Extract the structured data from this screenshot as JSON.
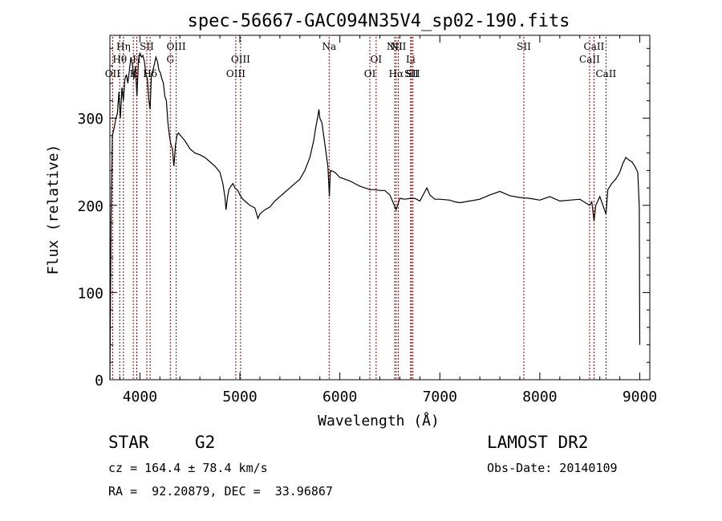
{
  "chart_data": {
    "type": "line",
    "title": "spec-56667-GAC094N35V4_sp02-190.fits",
    "xlabel": "Wavelength (Å)",
    "ylabel": "Flux (relative)",
    "xlim": [
      3700,
      9100
    ],
    "ylim": [
      0,
      395
    ],
    "xticks": [
      4000,
      5000,
      6000,
      7000,
      8000,
      9000
    ],
    "yticks": [
      0,
      100,
      200,
      300
    ],
    "grid": false,
    "line_color": "#000000",
    "marker_color": "#8b0000",
    "series": [
      {
        "points": [
          [
            3700,
            0
          ],
          [
            3712,
            190
          ],
          [
            3725,
            280
          ],
          [
            3745,
            290
          ],
          [
            3760,
            300
          ],
          [
            3775,
            305
          ],
          [
            3790,
            330
          ],
          [
            3805,
            300
          ],
          [
            3820,
            335
          ],
          [
            3835,
            320
          ],
          [
            3850,
            345
          ],
          [
            3865,
            350
          ],
          [
            3880,
            340
          ],
          [
            3895,
            355
          ],
          [
            3910,
            370
          ],
          [
            3925,
            362
          ],
          [
            3940,
            345
          ],
          [
            3955,
            360
          ],
          [
            3970,
            325
          ],
          [
            3985,
            365
          ],
          [
            4000,
            375
          ],
          [
            4015,
            370
          ],
          [
            4030,
            372
          ],
          [
            4045,
            365
          ],
          [
            4060,
            350
          ],
          [
            4075,
            345
          ],
          [
            4090,
            320
          ],
          [
            4102,
            310
          ],
          [
            4115,
            350
          ],
          [
            4130,
            355
          ],
          [
            4145,
            362
          ],
          [
            4160,
            370
          ],
          [
            4175,
            365
          ],
          [
            4190,
            355
          ],
          [
            4205,
            352
          ],
          [
            4220,
            345
          ],
          [
            4235,
            340
          ],
          [
            4250,
            325
          ],
          [
            4265,
            320
          ],
          [
            4280,
            295
          ],
          [
            4295,
            280
          ],
          [
            4310,
            270
          ],
          [
            4325,
            265
          ],
          [
            4340,
            245
          ],
          [
            4355,
            268
          ],
          [
            4370,
            280
          ],
          [
            4385,
            283
          ],
          [
            4400,
            281
          ],
          [
            4450,
            274
          ],
          [
            4500,
            265
          ],
          [
            4550,
            260
          ],
          [
            4600,
            258
          ],
          [
            4650,
            255
          ],
          [
            4700,
            250
          ],
          [
            4750,
            245
          ],
          [
            4800,
            238
          ],
          [
            4830,
            225
          ],
          [
            4850,
            210
          ],
          [
            4862,
            195
          ],
          [
            4875,
            208
          ],
          [
            4890,
            218
          ],
          [
            4910,
            222
          ],
          [
            4930,
            225
          ],
          [
            4950,
            220
          ],
          [
            4980,
            217
          ],
          [
            5000,
            212
          ],
          [
            5030,
            207
          ],
          [
            5070,
            203
          ],
          [
            5100,
            200
          ],
          [
            5150,
            197
          ],
          [
            5180,
            185
          ],
          [
            5200,
            190
          ],
          [
            5250,
            195
          ],
          [
            5300,
            198
          ],
          [
            5350,
            205
          ],
          [
            5400,
            210
          ],
          [
            5450,
            215
          ],
          [
            5500,
            220
          ],
          [
            5550,
            225
          ],
          [
            5600,
            230
          ],
          [
            5650,
            240
          ],
          [
            5700,
            255
          ],
          [
            5740,
            275
          ],
          [
            5760,
            290
          ],
          [
            5780,
            302
          ],
          [
            5790,
            310
          ],
          [
            5800,
            300
          ],
          [
            5820,
            295
          ],
          [
            5850,
            270
          ],
          [
            5880,
            245
          ],
          [
            5895,
            210
          ],
          [
            5905,
            240
          ],
          [
            5950,
            238
          ],
          [
            6000,
            232
          ],
          [
            6050,
            230
          ],
          [
            6100,
            228
          ],
          [
            6150,
            225
          ],
          [
            6200,
            222
          ],
          [
            6250,
            220
          ],
          [
            6300,
            218
          ],
          [
            6350,
            218
          ],
          [
            6400,
            217
          ],
          [
            6450,
            217
          ],
          [
            6500,
            212
          ],
          [
            6563,
            195
          ],
          [
            6600,
            208
          ],
          [
            6650,
            207
          ],
          [
            6700,
            208
          ],
          [
            6750,
            208
          ],
          [
            6800,
            205
          ],
          [
            6870,
            220
          ],
          [
            6900,
            212
          ],
          [
            6950,
            207
          ],
          [
            7000,
            207
          ],
          [
            7100,
            206
          ],
          [
            7150,
            204
          ],
          [
            7200,
            203
          ],
          [
            7300,
            205
          ],
          [
            7400,
            207
          ],
          [
            7500,
            212
          ],
          [
            7600,
            216
          ],
          [
            7700,
            211
          ],
          [
            7800,
            209
          ],
          [
            7900,
            208
          ],
          [
            8000,
            206
          ],
          [
            8100,
            210
          ],
          [
            8200,
            205
          ],
          [
            8300,
            206
          ],
          [
            8400,
            207
          ],
          [
            8498,
            200
          ],
          [
            8520,
            204
          ],
          [
            8542,
            182
          ],
          [
            8560,
            200
          ],
          [
            8600,
            210
          ],
          [
            8662,
            190
          ],
          [
            8680,
            218
          ],
          [
            8720,
            225
          ],
          [
            8760,
            230
          ],
          [
            8800,
            238
          ],
          [
            8830,
            248
          ],
          [
            8860,
            255
          ],
          [
            8890,
            252
          ],
          [
            8920,
            250
          ],
          [
            8950,
            245
          ],
          [
            8980,
            238
          ],
          [
            8995,
            198
          ],
          [
            9000,
            40
          ]
        ]
      }
    ],
    "spectral_lines": [
      {
        "label": "OII",
        "wavelength": 3727,
        "row": 3
      },
      {
        "label": "Hθ",
        "wavelength": 3798,
        "row": 2
      },
      {
        "label": "Hη",
        "wavelength": 3835,
        "row": 1
      },
      {
        "label": "K",
        "wavelength": 3934,
        "row": 3
      },
      {
        "label": "H",
        "wavelength": 3969,
        "row": 2
      },
      {
        "label": "SII",
        "wavelength": 4069,
        "row": 1
      },
      {
        "label": "Hδ",
        "wavelength": 4102,
        "row": 3
      },
      {
        "label": "OIII",
        "wavelength": 4363,
        "row": 1
      },
      {
        "label": "G",
        "wavelength": 4304,
        "row": 2
      },
      {
        "label": "OIII",
        "wavelength": 4959,
        "row": 3
      },
      {
        "label": "OIII",
        "wavelength": 5007,
        "row": 2
      },
      {
        "label": "Na",
        "wavelength": 5893,
        "row": 1
      },
      {
        "label": "OI",
        "wavelength": 6300,
        "row": 3
      },
      {
        "label": "OI",
        "wavelength": 6363,
        "row": 2
      },
      {
        "label": "NII",
        "wavelength": 6548,
        "row": 1
      },
      {
        "label": "Hα",
        "wavelength": 6563,
        "row": 3
      },
      {
        "label": "NII",
        "wavelength": 6584,
        "row": 1
      },
      {
        "label": "Li",
        "wavelength": 6708,
        "row": 2
      },
      {
        "label": "SII",
        "wavelength": 6716,
        "row": 3
      },
      {
        "label": "SII",
        "wavelength": 6731,
        "row": 3
      },
      {
        "label": "SII",
        "wavelength": 7840,
        "row": 1
      },
      {
        "label": "CaII",
        "wavelength": 8498,
        "row": 2
      },
      {
        "label": "CaII",
        "wavelength": 8542,
        "row": 1
      },
      {
        "label": "CaII",
        "wavelength": 8662,
        "row": 3
      }
    ]
  },
  "info": {
    "class_label": "STAR",
    "subclass": "G2",
    "survey": "LAMOST DR2",
    "cz": "cz = 164.4 ± 78.4 km/s",
    "obs_date": "Obs-Date: 20140109",
    "radec": "RA =  92.20879, DEC =  33.96867"
  }
}
